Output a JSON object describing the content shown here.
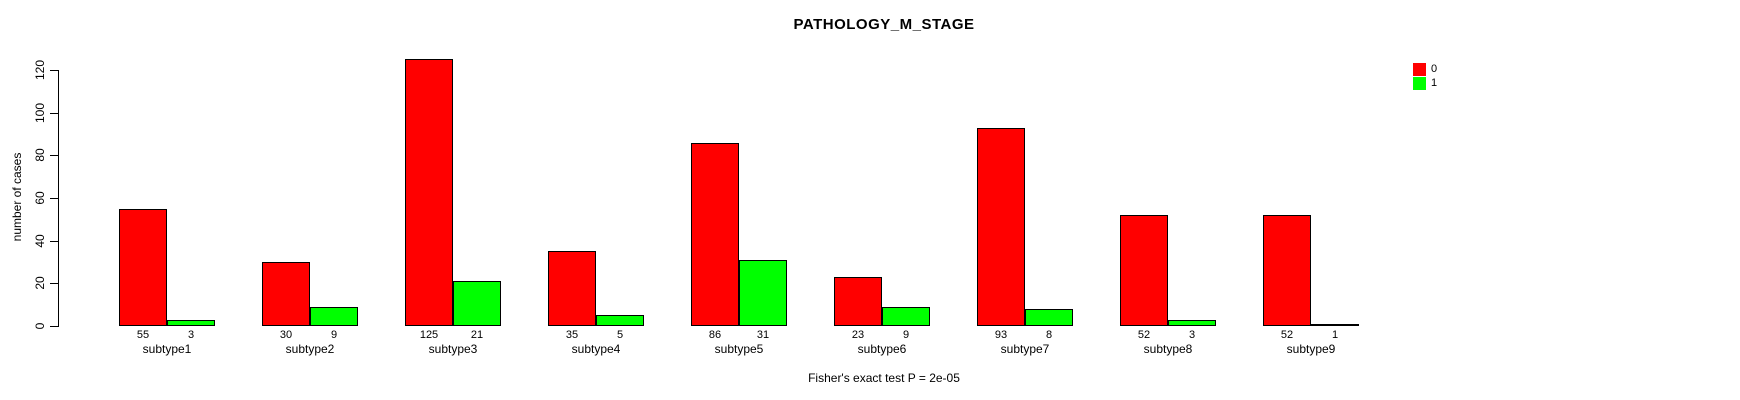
{
  "chart_data": {
    "type": "bar",
    "title": "PATHOLOGY_M_STAGE",
    "xlabel": "",
    "ylabel": "number of cases",
    "categories": [
      "subtype1",
      "subtype2",
      "subtype3",
      "subtype4",
      "subtype5",
      "subtype6",
      "subtype7",
      "subtype8",
      "subtype9"
    ],
    "series": [
      {
        "name": "0",
        "color": "#ff0000",
        "values": [
          55,
          30,
          125,
          35,
          86,
          23,
          93,
          52,
          52
        ]
      },
      {
        "name": "1",
        "color": "#00ff00",
        "values": [
          3,
          9,
          21,
          5,
          31,
          9,
          8,
          3,
          1
        ]
      }
    ],
    "yticks": [
      0,
      20,
      40,
      60,
      80,
      100,
      120
    ],
    "ylim": [
      0,
      125
    ],
    "bar_value_labels": true,
    "legend_position": "topright",
    "grid": false,
    "bar_border_color": "#000000",
    "annotation": "Fisher's exact test P = 2e-05"
  }
}
